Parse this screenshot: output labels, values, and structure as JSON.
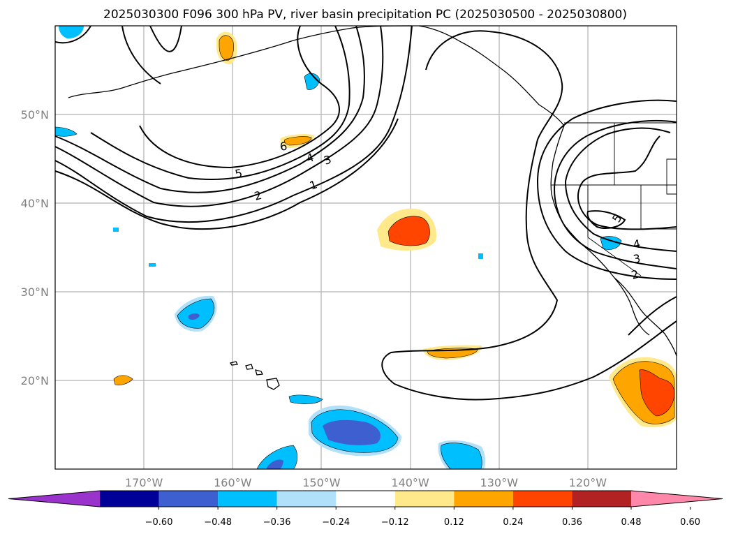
{
  "title": "2025030300 F096 300 hPa PV, river basin precipitation PC (2025030500 - 2025030800)",
  "chart_data": {
    "type": "heatmap",
    "map": {
      "lon_range": [
        -180,
        -110
      ],
      "lat_range": [
        10,
        60
      ],
      "lat_ticks": [
        {
          "value": 20,
          "label": "20°N"
        },
        {
          "value": 30,
          "label": "30°N"
        },
        {
          "value": 40,
          "label": "40°N"
        },
        {
          "value": 50,
          "label": "50°N"
        }
      ],
      "lon_ticks": [
        {
          "value": -170,
          "label": "170°W"
        },
        {
          "value": -160,
          "label": "160°W"
        },
        {
          "value": -150,
          "label": "150°W"
        },
        {
          "value": -140,
          "label": "140°W"
        },
        {
          "value": -130,
          "label": "130°W"
        },
        {
          "value": -120,
          "label": "120°W"
        }
      ],
      "grid": true
    },
    "colorbar": {
      "levels": [
        -0.6,
        -0.48,
        -0.36,
        -0.24,
        -0.12,
        0.12,
        0.24,
        0.36,
        0.48,
        0.6
      ],
      "tick_labels": [
        "−0.60",
        "−0.48",
        "−0.36",
        "−0.24",
        "−0.12",
        "0.12",
        "0.24",
        "0.36",
        "0.48",
        "0.60"
      ],
      "colors": [
        "#9933cc",
        "#000099",
        "#3d5fcf",
        "#00bfff",
        "#b0e0fa",
        "#ffffff",
        "#ffe98a",
        "#ffa500",
        "#ff4500",
        "#b22222",
        "#ff88aa"
      ],
      "extend": "both"
    },
    "pv_contour_labels": [
      "1",
      "2",
      "3",
      "4",
      "5",
      "6"
    ],
    "precip_patches": [
      {
        "level": 0.48,
        "color": "#ff4500"
      },
      {
        "level": 0.24,
        "color": "#ffa500"
      },
      {
        "level": 0.12,
        "color": "#ffe98a"
      },
      {
        "level": -0.36,
        "color": "#3d5fcf"
      },
      {
        "level": -0.24,
        "color": "#00bfff"
      },
      {
        "level": -0.12,
        "color": "#b0e0fa"
      }
    ]
  }
}
